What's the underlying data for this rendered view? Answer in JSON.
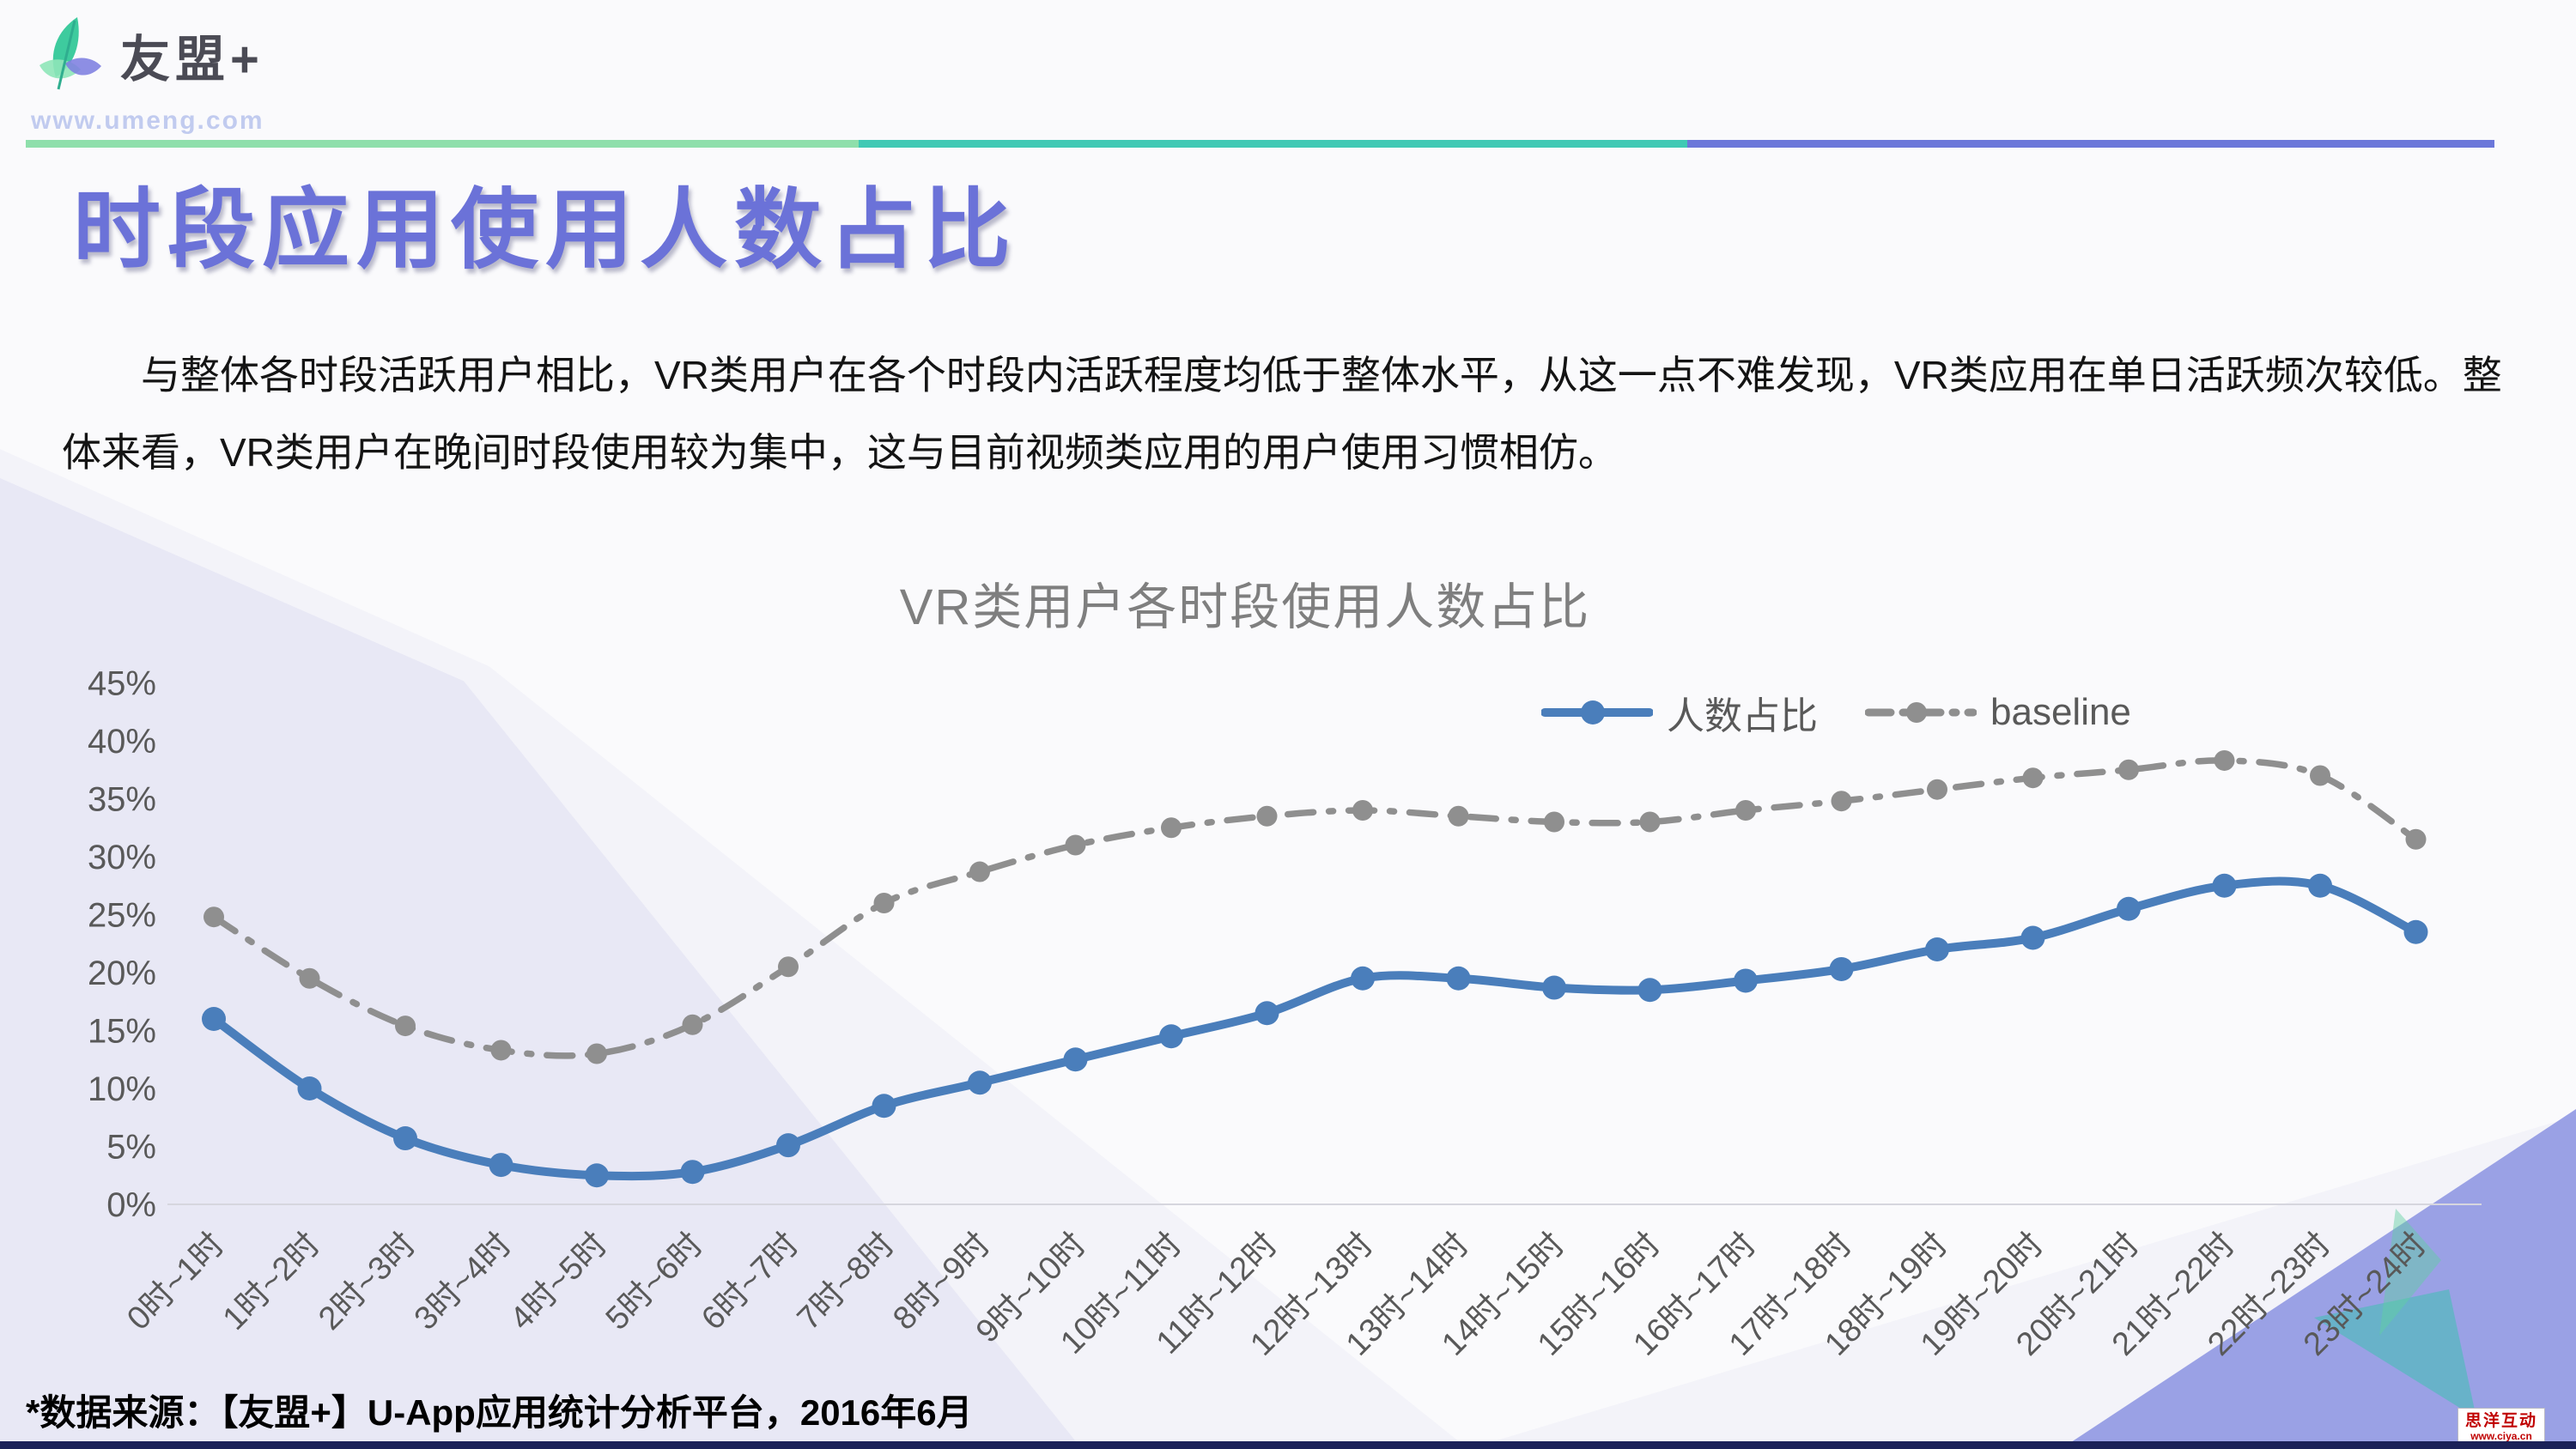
{
  "header": {
    "logo_text": "友盟+",
    "logo_url": "www.umeng.com"
  },
  "title": "时段应用使用人数占比",
  "body_paragraph": "与整体各时段活跃用户相比，VR类用户在各个时段内活跃程度均低于整体水平，从这一点不难发现，VR类应用在单日活跃频次较低。整体来看，VR类用户在晚间时段使用较为集中，这与目前视频类应用的用户使用习惯相仿。",
  "source_note": "*数据来源：【友盟+】U-App应用统计分析平台，2016年6月",
  "corner_badge": {
    "name": "思洋互动",
    "url": "www.ciya.cn"
  },
  "chart_data": {
    "type": "line",
    "title": "VR类用户各时段使用人数占比",
    "categories": [
      "0时~1时",
      "1时~2时",
      "2时~3时",
      "3时~4时",
      "4时~5时",
      "5时~6时",
      "6时~7时",
      "7时~8时",
      "8时~9时",
      "9时~10时",
      "10时~11时",
      "11时~12时",
      "12时~13时",
      "13时~14时",
      "14时~15时",
      "15时~16时",
      "16时~17时",
      "17时~18时",
      "18时~19时",
      "19时~20时",
      "20时~21时",
      "21时~22时",
      "22时~23时",
      "23时~24时"
    ],
    "series": [
      {
        "name": "人数占比",
        "color": "#4a7ebb",
        "line_style": "solid",
        "values": [
          16.0,
          10.0,
          5.7,
          3.4,
          2.5,
          2.8,
          5.1,
          8.5,
          10.5,
          12.5,
          14.5,
          16.5,
          19.5,
          19.5,
          18.7,
          18.5,
          19.3,
          20.3,
          22.0,
          23.0,
          25.5,
          27.5,
          27.5,
          23.5
        ]
      },
      {
        "name": "baseline",
        "color": "#8f8f8f",
        "line_style": "dash-dot",
        "values": [
          24.8,
          19.5,
          15.4,
          13.3,
          13.0,
          15.5,
          20.5,
          26.0,
          28.7,
          31.0,
          32.5,
          33.5,
          34.0,
          33.5,
          33.0,
          33.0,
          34.0,
          34.8,
          35.8,
          36.8,
          37.5,
          38.3,
          37.0,
          31.5
        ]
      }
    ],
    "ylim": [
      0,
      45
    ],
    "ytick_step": 5,
    "yticks": [
      "0%",
      "5%",
      "10%",
      "15%",
      "20%",
      "25%",
      "30%",
      "35%",
      "40%",
      "45%"
    ],
    "xlabel": "",
    "ylabel": "",
    "grid": false,
    "legend_position": "top-right",
    "x_label_rotation": -45
  },
  "colors": {
    "title": "#6b72d8",
    "divider_green": "#8edfab",
    "divider_teal": "#3fc9b4",
    "divider_purple": "#6b77da",
    "chart_title": "#7f7f7f",
    "axis_text": "#595959",
    "series_blue": "#4a7ebb",
    "series_gray": "#8f8f8f",
    "corner_triangle_periwinkle": "#8a92e2",
    "corner_triangle_teal": "#35c3ae",
    "corner_triangle_green": "#5fd0a0",
    "badge_text": "#c00000",
    "bottom_bar": "#1b2158"
  }
}
